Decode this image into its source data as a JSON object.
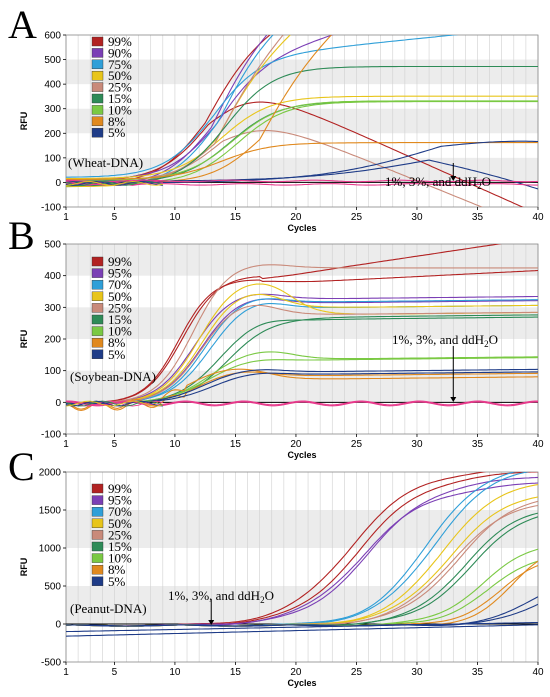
{
  "colors": {
    "99%": "#b22222",
    "95%": "#7b3fb5",
    "90%": "#7b3fb5",
    "75%": "#2f9fd8",
    "70%": "#2f9fd8",
    "50%": "#e8c51a",
    "25%": "#c98a7a",
    "15%": "#2e8b57",
    "10%": "#7ac943",
    "8%": "#e0891e",
    "5%": "#1f3c88",
    "neg": "#e83a8c"
  },
  "chart_data": [
    {
      "type": "line",
      "panel": "A",
      "annotation": "(Wheat-DNA)",
      "arrow_label": "1%, 3%, and ddH2O",
      "arrow_x": 33,
      "xlabel": "Cycles",
      "ylabel": "RFU",
      "xlim": [
        1,
        40
      ],
      "ylim": [
        -100,
        600
      ],
      "xticks": [
        1,
        5,
        10,
        15,
        20,
        25,
        30,
        35,
        40
      ],
      "yticks": [
        -100,
        0,
        100,
        200,
        300,
        400,
        500,
        600
      ],
      "legend": [
        "99%",
        "90%",
        "75%",
        "50%",
        "25%",
        "15%",
        "10%",
        "8%",
        "5%"
      ],
      "series": [
        {
          "name": "99%",
          "curves": [
            [
              12.5,
              2,
              0.0168,
              0.026,
              -10
            ],
            [
              12.8,
              2,
              0.0155,
              -0.022,
              5
            ]
          ]
        },
        {
          "name": "90%",
          "curves": [
            [
              13.0,
              2,
              0.0158,
              0.04,
              -14
            ],
            [
              13.4,
              2,
              0.015,
              0.015,
              10
            ]
          ]
        },
        {
          "name": "75%",
          "curves": [
            [
              13.6,
              2,
              0.0178,
              0.03,
              -18
            ],
            [
              13.0,
              2,
              0.016,
              0.005,
              20
            ]
          ]
        },
        {
          "name": "50%",
          "curves": [
            [
              13.5,
              2,
              0.0132,
              0.04,
              -18
            ],
            [
              13.9,
              2,
              0.0112,
              0.0,
              15
            ]
          ]
        },
        {
          "name": "25%",
          "curves": [
            [
              13.3,
              2,
              0.0112,
              0.052,
              -10
            ],
            [
              13.9,
              2,
              0.0108,
              -0.02,
              5
            ]
          ]
        },
        {
          "name": "15%",
          "curves": [
            [
              14.2,
              2,
              0.0162,
              0.0,
              -14
            ],
            [
              14.6,
              2,
              0.011,
              0.0,
              0
            ]
          ]
        },
        {
          "name": "10%",
          "curves": [
            [
              15.2,
              2,
              0.0112,
              0.0,
              -7
            ],
            [
              14.8,
              2,
              0.0108,
              0.0,
              8
            ]
          ]
        },
        {
          "name": "8%",
          "curves": [
            [
              17.0,
              2,
              0.0118,
              0.045,
              -3
            ],
            [
              13.9,
              2,
              0.005,
              0.0,
              12
            ]
          ]
        },
        {
          "name": "5%",
          "curves": [
            [
              32.0,
              5,
              0.01,
              -0.01,
              -3
            ],
            [
              31.0,
              5,
              0.0058,
              -0.02,
              4
            ]
          ]
        },
        {
          "name": "neg",
          "curves": [
            [
              0,
              0,
              0,
              0,
              -8
            ],
            [
              0,
              0,
              0,
              0,
              6
            ]
          ]
        }
      ]
    },
    {
      "type": "line",
      "panel": "B",
      "annotation": "(Soybean-DNA)",
      "arrow_label": "1%, 3%, and ddH2O",
      "arrow_x": 33,
      "xlabel": "Cycles",
      "ylabel": "RFU",
      "xlim": [
        1,
        40
      ],
      "ylim": [
        -100,
        500
      ],
      "xticks": [
        1,
        5,
        10,
        15,
        20,
        25,
        30,
        35,
        40
      ],
      "yticks": [
        -100,
        0,
        100,
        200,
        300,
        400,
        500
      ],
      "legend": [
        "99%",
        "95%",
        "70%",
        "50%",
        "25%",
        "15%",
        "10%",
        "8%",
        "5%"
      ],
      "series": [
        {
          "name": "99%",
          "curves": [
            [
              10.6,
              1.5,
              0.00745,
              0.42,
              400,
              0.38,
              17,
              4,
              -5
            ],
            [
              10.3,
              1.4,
              0.0072,
              0.38,
              380,
              0.22,
              17,
              4,
              -3
            ]
          ]
        },
        {
          "name": "95%",
          "curves": [
            [
              11.6,
              1.6,
              0.00665,
              0.46,
              330,
              0.3,
              17,
              4,
              -5
            ],
            [
              12.2,
              1.6,
              0.0064,
              0.42,
              315,
              0.25,
              17,
              4,
              -3
            ]
          ]
        },
        {
          "name": "70%",
          "curves": [
            [
              12.5,
              1.6,
              0.0065,
              0.48,
              320,
              0.25,
              17,
              4,
              -5
            ],
            [
              13.0,
              1.7,
              0.0064,
              0.45,
              300,
              0.2,
              17,
              4,
              -3
            ]
          ]
        },
        {
          "name": "50%",
          "curves": [
            [
              12.0,
              1.6,
              0.00745,
              0.52,
              280,
              0.2,
              18,
              4,
              -5
            ],
            [
              12.2,
              1.6,
              0.00688,
              0.44,
              300,
              0.2,
              17,
              4,
              -3
            ]
          ]
        },
        {
          "name": "25%",
          "curves": [
            [
              12.2,
              1.6,
              0.0063,
              0.36,
              280,
              0.3,
              16.5,
              4,
              -5
            ],
            [
              11.5,
              1.5,
              0.00818,
              1.0,
              0,
              0.05,
              17.5,
              4,
              -3
            ]
          ]
        },
        {
          "name": "15%",
          "curves": [
            [
              13.8,
              1.8,
              0.0054,
              0.4,
              265,
              0.3,
              17,
              4,
              -5
            ],
            [
              14.4,
              1.8,
              0.00495,
              0.38,
              270,
              0.25,
              17,
              4,
              -3
            ]
          ]
        },
        {
          "name": "10%",
          "curves": [
            [
              13.0,
              1.8,
              0.00335,
              0.48,
              140,
              0.15,
              18,
              4,
              -5
            ],
            [
              12.8,
              1.8,
              0.00275,
              0.45,
              135,
              0.15,
              17,
              4,
              -3
            ]
          ]
        },
        {
          "name": "8%",
          "curves": [
            [
              12.0,
              1.6,
              0.00215,
              0.55,
              90,
              0.2,
              16,
              4,
              -8
            ],
            [
              11.2,
              1.6,
              0.00225,
              0.4,
              75,
              0.2,
              16,
              4,
              -4
            ]
          ]
        },
        {
          "name": "5%",
          "curves": [
            [
              12.5,
              1.8,
              0.0022,
              0.5,
              100,
              0.2,
              17,
              4,
              -5
            ],
            [
              13.2,
              1.8,
              0.00198,
              0.4,
              90,
              0.2,
              17,
              4,
              -3
            ]
          ]
        },
        {
          "name": "neg",
          "curves": [
            [
              0,
              1,
              0,
              0,
              0,
              0,
              0,
              1,
              -5
            ],
            [
              0,
              1,
              0,
              0,
              0,
              0,
              0,
              1,
              -2
            ]
          ]
        }
      ]
    },
    {
      "type": "line",
      "panel": "C",
      "annotation": "(Peanut-DNA)",
      "arrow_label": "1%, 3%, and ddH2O",
      "arrow_x": 13,
      "xlabel": "Cycles",
      "ylabel": "RFU",
      "xlim": [
        1,
        40
      ],
      "ylim": [
        -500,
        2000
      ],
      "xticks": [
        1,
        5,
        10,
        15,
        20,
        25,
        30,
        35,
        40
      ],
      "yticks": [
        -500,
        0,
        500,
        1000,
        1500,
        2000
      ],
      "legend": [
        "99%",
        "95%",
        "70%",
        "50%",
        "25%",
        "15%",
        "10%",
        "8%",
        "5%"
      ],
      "series": [
        {
          "name": "99%",
          "curves": [
            [
              24.2,
              2.6,
              0.00148,
              0.022,
              0
            ],
            [
              25.0,
              2.6,
              0.00145,
              0.02,
              0
            ]
          ]
        },
        {
          "name": "95%",
          "curves": [
            [
              25.2,
              2.6,
              0.00132,
              0.022,
              0
            ],
            [
              25.8,
              2.6,
              0.0014,
              0.02,
              0
            ]
          ]
        },
        {
          "name": "70%",
          "curves": [
            [
              30.6,
              2.3,
              0.00155,
              0.02,
              0
            ],
            [
              31.2,
              2.4,
              0.00155,
              0.02,
              0
            ]
          ]
        },
        {
          "name": "50%",
          "curves": [
            [
              31.8,
              2.3,
              0.0014,
              0.02,
              0
            ],
            [
              32.4,
              2.4,
              0.0013,
              0.02,
              0
            ]
          ]
        },
        {
          "name": "25%",
          "curves": [
            [
              32.5,
              2.3,
              0.0012,
              0.02,
              0
            ],
            [
              33.2,
              2.4,
              0.00128,
              0.02,
              0
            ]
          ]
        },
        {
          "name": "15%",
          "curves": [
            [
              33.7,
              2.2,
              0.00115,
              0.02,
              0
            ],
            [
              34.3,
              2.3,
              0.00115,
              0.02,
              0
            ]
          ]
        },
        {
          "name": "10%",
          "curves": [
            [
              35.2,
              2.0,
              0.0008,
              0.02,
              0
            ],
            [
              35.8,
              2.0,
              0.0007,
              0.02,
              0
            ]
          ]
        },
        {
          "name": "8%",
          "curves": [
            [
              36.8,
              1.8,
              0.00068,
              0.02,
              0
            ],
            [
              37.8,
              1.6,
              0.0008,
              0.02,
              0
            ]
          ]
        },
        {
          "name": "5%",
          "curves": [
            [
              39.8,
              2.0,
              0.00055,
              0.02,
              0
            ],
            [
              40.5,
              2.0,
              0.0005,
              0.02,
              0
            ]
          ]
        },
        {
          "name": "baseline",
          "curves": [
            [
              0,
              1,
              0,
              0,
              -160
            ],
            [
              0,
              1,
              0,
              0,
              -100
            ]
          ]
        }
      ]
    }
  ]
}
